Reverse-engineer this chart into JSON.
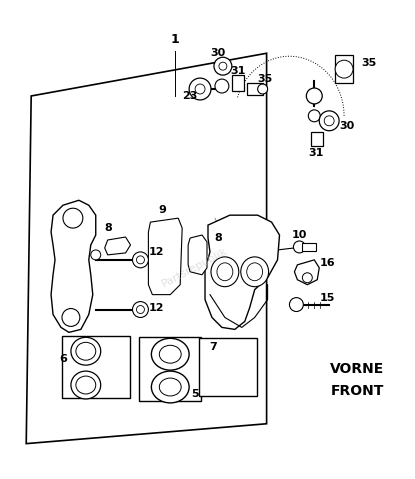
{
  "background_color": "#ffffff",
  "line_color": "#000000",
  "text_color": "#000000",
  "watermark_text": "Partsrepublik",
  "vorne_front_text": [
    "VORNE",
    "FRONT"
  ],
  "figsize": [
    4.15,
    4.79
  ],
  "dpi": 100
}
